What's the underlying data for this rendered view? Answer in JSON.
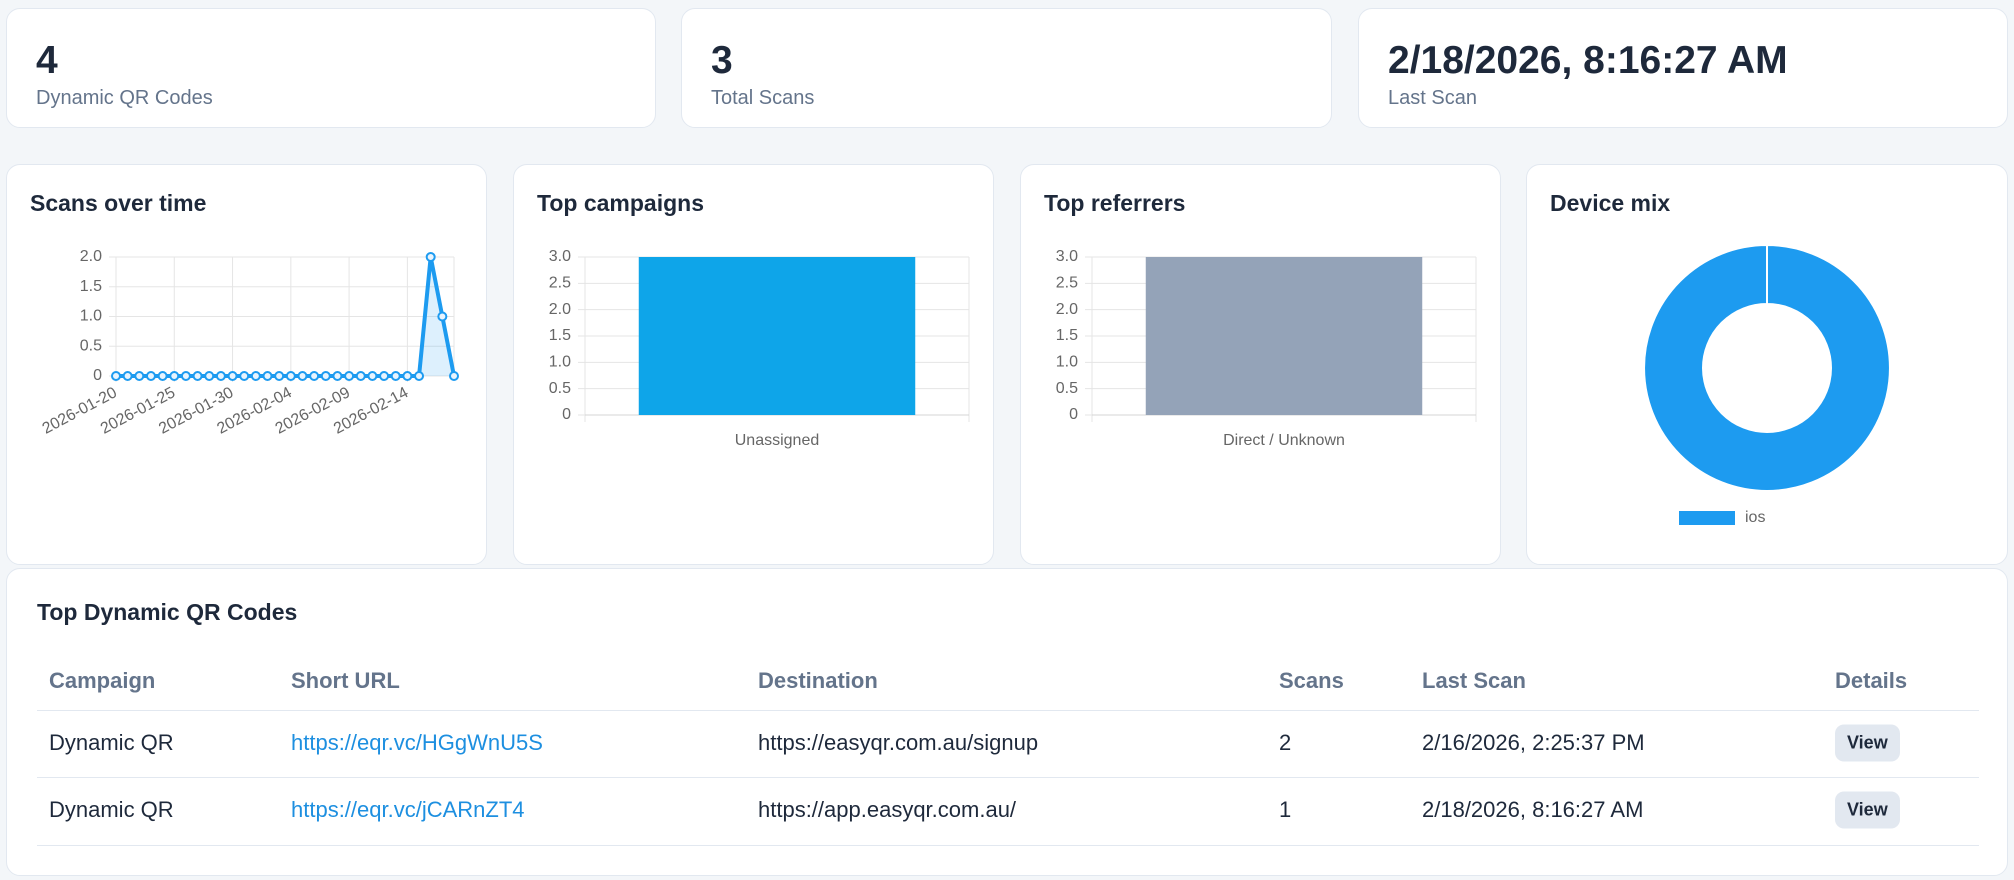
{
  "stats": [
    {
      "value": "4",
      "label": "Dynamic QR Codes"
    },
    {
      "value": "3",
      "label": "Total Scans"
    },
    {
      "value": "2/18/2026, 8:16:27 AM",
      "label": "Last Scan"
    }
  ],
  "charts": [
    {
      "type": "line",
      "title": "Scans over time",
      "categories": [
        "2026-01-20",
        null,
        null,
        null,
        null,
        "2026-01-25",
        null,
        null,
        null,
        null,
        "2026-01-30",
        null,
        null,
        null,
        null,
        "2026-02-04",
        null,
        null,
        null,
        null,
        "2026-02-09",
        null,
        null,
        null,
        null,
        "2026-02-14",
        null,
        null,
        null,
        null
      ],
      "values": [
        0,
        0,
        0,
        0,
        0,
        0,
        0,
        0,
        0,
        0,
        0,
        0,
        0,
        0,
        0,
        0,
        0,
        0,
        0,
        0,
        0,
        0,
        0,
        0,
        0,
        0,
        0,
        2,
        1,
        0
      ],
      "color": "#1d9bf0",
      "ylim": [
        0,
        2
      ],
      "yticks": [
        0,
        0.5,
        {
          "value": 1,
          "label": "1.0"
        },
        1.5,
        {
          "value": 2,
          "label": "2.0"
        }
      ],
      "grid": true
    },
    {
      "type": "bar",
      "title": "Top campaigns",
      "categories": [
        "Unassigned"
      ],
      "values": [
        3
      ],
      "color": "#0ea5e9",
      "ylim": [
        0,
        3
      ],
      "yticks": [
        0,
        0.5,
        {
          "value": 1,
          "label": "1.0"
        },
        1.5,
        {
          "value": 2,
          "label": "2.0"
        },
        2.5,
        {
          "value": 3,
          "label": "3.0"
        }
      ],
      "grid": true
    },
    {
      "type": "bar",
      "title": "Top referrers",
      "categories": [
        "Direct / Unknown"
      ],
      "values": [
        3
      ],
      "color": "#94a3b8",
      "ylim": [
        0,
        3
      ],
      "yticks": [
        0,
        0.5,
        {
          "value": 1,
          "label": "1.0"
        },
        1.5,
        {
          "value": 2,
          "label": "2.0"
        },
        2.5,
        {
          "value": 3,
          "label": "3.0"
        }
      ],
      "grid": true
    },
    {
      "type": "pie",
      "title": "Device mix",
      "categories": [
        "ios"
      ],
      "values": [
        3
      ],
      "colors": [
        "#1d9bf0"
      ],
      "legend": "bottom"
    }
  ],
  "table": {
    "title": "Top Dynamic QR Codes",
    "headers": [
      "Campaign",
      "Short URL",
      "Destination",
      "Scans",
      "Last Scan",
      "Details"
    ],
    "rows": [
      [
        "Dynamic QR",
        "https://eqr.vc/HGgWnU5S",
        "https://easyqr.com.au/signup",
        "2",
        "2/16/2026, 2:25:37 PM",
        "View"
      ],
      [
        "Dynamic QR",
        "https://eqr.vc/jCARnZT4",
        "https://app.easyqr.com.au/",
        "1",
        "2/18/2026, 8:16:27 AM",
        "View"
      ]
    ]
  }
}
